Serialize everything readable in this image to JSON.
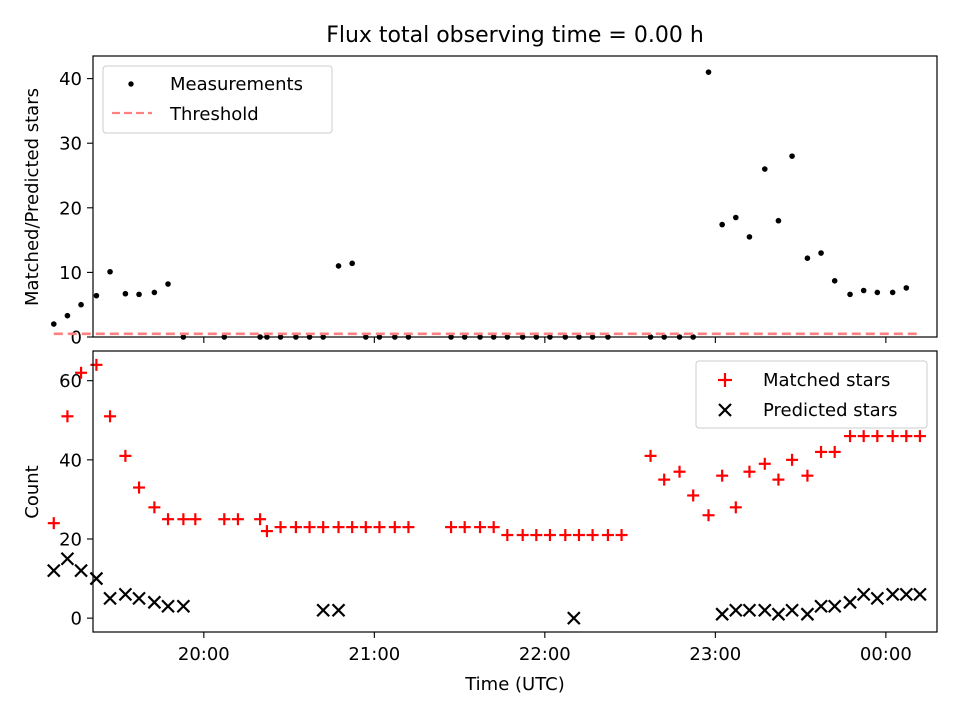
{
  "title": "Flux total observing time = 0.00 h",
  "x_axis": {
    "label": "Time (UTC)",
    "range_hours": [
      19.35,
      24.3
    ],
    "tick_hours": [
      20,
      21,
      22,
      23,
      24
    ],
    "tick_labels": [
      "20:00",
      "21:00",
      "22:00",
      "23:00",
      "00:00"
    ]
  },
  "chart_data": [
    {
      "type": "scatter",
      "ylabel": "Matched/Predicted stars",
      "ylim": [
        0,
        43.5
      ],
      "y_ticks": [
        0,
        10,
        20,
        30,
        40
      ],
      "legend_position": "upper-left",
      "colors": {
        "measurements": "#000000",
        "threshold": "#ff8080"
      },
      "series": [
        {
          "name": "Measurements",
          "marker": "dot",
          "x_hours": [
            19.12,
            19.2,
            19.28,
            19.37,
            19.45,
            19.54,
            19.62,
            19.71,
            19.79,
            19.88,
            20.12,
            20.33,
            20.37,
            20.45,
            20.54,
            20.62,
            20.7,
            20.79,
            20.87,
            20.95,
            21.03,
            21.12,
            21.2,
            21.45,
            21.53,
            21.62,
            21.7,
            21.78,
            21.87,
            21.95,
            22.03,
            22.12,
            22.2,
            22.28,
            22.37,
            22.62,
            22.7,
            22.79,
            22.87,
            22.96,
            23.04,
            23.12,
            23.2,
            23.29,
            23.37,
            23.45,
            23.54,
            23.62,
            23.7,
            23.79,
            23.87,
            23.95,
            24.04,
            24.12
          ],
          "y": [
            2,
            3.3,
            5,
            6.4,
            10.1,
            6.7,
            6.6,
            6.9,
            8.2,
            0,
            0,
            0,
            0,
            0,
            0,
            0,
            0,
            11,
            11.4,
            0,
            0,
            0,
            0,
            0,
            0,
            0,
            0,
            0,
            0,
            0,
            0,
            0,
            0,
            0,
            0,
            0,
            0,
            0,
            0,
            41,
            17.4,
            18.5,
            15.5,
            26,
            18,
            28,
            12.2,
            13,
            8.7,
            6.6,
            7.2,
            6.9,
            6.9,
            7.6
          ]
        },
        {
          "name": "Threshold",
          "style": "dashed-line",
          "x_range_hours": [
            19.12,
            24.2
          ],
          "value": 0.5
        }
      ]
    },
    {
      "type": "scatter",
      "ylabel": "Count",
      "ylim": [
        -3.5,
        67.5
      ],
      "y_ticks": [
        0,
        20,
        40,
        60
      ],
      "legend_position": "upper-right",
      "colors": {
        "matched": "#ff0000",
        "predicted": "#000000"
      },
      "series": [
        {
          "name": "Matched stars",
          "marker": "plus",
          "x_hours": [
            19.12,
            19.2,
            19.28,
            19.37,
            19.45,
            19.54,
            19.62,
            19.71,
            19.79,
            19.88,
            19.95,
            20.12,
            20.2,
            20.33,
            20.37,
            20.45,
            20.54,
            20.62,
            20.7,
            20.79,
            20.87,
            20.95,
            21.03,
            21.12,
            21.2,
            21.45,
            21.53,
            21.62,
            21.7,
            21.78,
            21.87,
            21.95,
            22.03,
            22.12,
            22.2,
            22.28,
            22.37,
            22.45,
            22.62,
            22.7,
            22.79,
            22.87,
            22.96,
            23.04,
            23.12,
            23.2,
            23.29,
            23.37,
            23.45,
            23.54,
            23.62,
            23.7,
            23.79,
            23.87,
            23.95,
            24.04,
            24.12,
            24.2
          ],
          "y": [
            24,
            51,
            62,
            64,
            51,
            41,
            33,
            28,
            25,
            25,
            25,
            25,
            25,
            25,
            22,
            23,
            23,
            23,
            23,
            23,
            23,
            23,
            23,
            23,
            23,
            23,
            23,
            23,
            23,
            21,
            21,
            21,
            21,
            21,
            21,
            21,
            21,
            21,
            41,
            35,
            37,
            31,
            26,
            36,
            28,
            37,
            39,
            35,
            40,
            36,
            42,
            42,
            46,
            46,
            46,
            46,
            46,
            46
          ]
        },
        {
          "name": "Predicted stars",
          "marker": "x",
          "x_hours": [
            19.12,
            19.2,
            19.28,
            19.37,
            19.45,
            19.54,
            19.62,
            19.71,
            19.79,
            19.88,
            20.7,
            20.79,
            22.17,
            23.04,
            23.12,
            23.2,
            23.29,
            23.37,
            23.45,
            23.54,
            23.62,
            23.7,
            23.79,
            23.87,
            23.95,
            24.04,
            24.12,
            24.2
          ],
          "y": [
            12,
            15,
            12,
            10,
            5,
            6,
            5,
            4,
            3,
            3,
            2,
            2,
            0,
            1,
            2,
            2,
            2,
            1,
            2,
            1,
            3,
            3,
            4,
            6,
            5,
            6,
            6,
            6
          ]
        }
      ],
      "series_display": [
        {
          "name": "Matched stars"
        },
        {
          "name": "Predicted stars"
        }
      ]
    }
  ]
}
